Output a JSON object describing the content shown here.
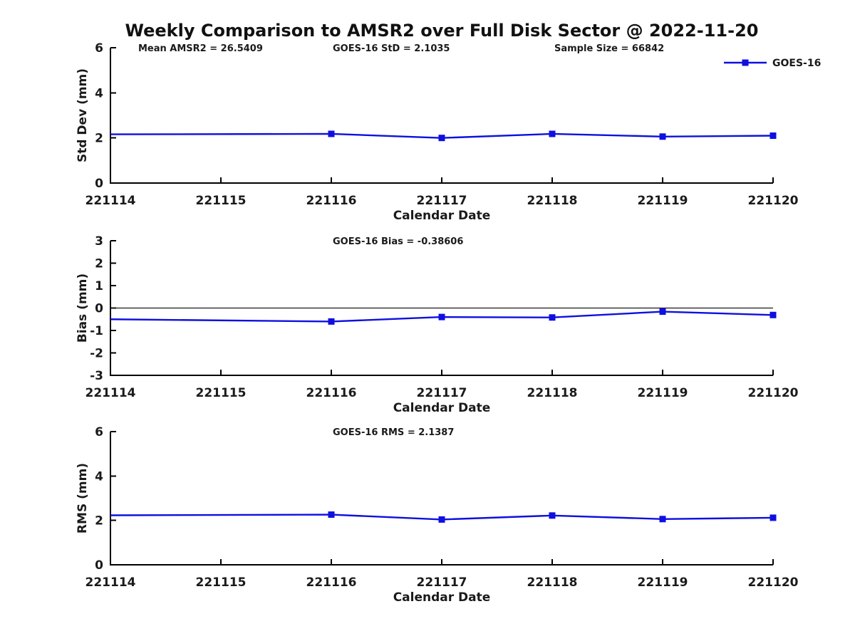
{
  "title": "Weekly Comparison to AMSR2 over Full Disk Sector @ 2022-11-20",
  "colors": {
    "line": "#0f0fe0",
    "axis": "#000000",
    "text": "#1a1a1a",
    "zero_line": "#1a1a1a"
  },
  "legend": {
    "label": "GOES-16",
    "position": "top-right",
    "marker": "square"
  },
  "chart_data": [
    {
      "type": "line",
      "name": "std-dev-panel",
      "ylabel": "Std Dev (mm)",
      "xlabel": "Calendar Date",
      "ylim": [
        0,
        6
      ],
      "yticks": [
        0,
        2,
        4,
        6
      ],
      "ytick_labels": [
        "0",
        "2",
        "4",
        "6"
      ],
      "x_tick_labels": [
        "221114",
        "221115",
        "221116",
        "221117",
        "221118",
        "221119",
        "221120"
      ],
      "grid": false,
      "zero_line": false,
      "annotations": [
        {
          "text": "Mean AMSR2 = 26.5409"
        },
        {
          "text": "GOES-16 StD = 2.1035"
        },
        {
          "text": "Sample Size = 66842"
        }
      ],
      "series": [
        {
          "name": "GOES-16",
          "x": [
            "221114",
            "221116",
            "221117",
            "221118",
            "221119",
            "221120"
          ],
          "y": [
            2.16,
            2.18,
            2.0,
            2.18,
            2.06,
            2.1
          ],
          "marker": "square",
          "clipped_marker_x": [
            "221114"
          ]
        }
      ]
    },
    {
      "type": "line",
      "name": "bias-panel",
      "ylabel": "Bias (mm)",
      "xlabel": "Calendar Date",
      "ylim": [
        -3,
        3
      ],
      "yticks": [
        -3,
        -2,
        -1,
        0,
        1,
        2,
        3
      ],
      "ytick_labels": [
        "-3",
        "-2",
        "-1",
        "0",
        "1",
        "2",
        "3"
      ],
      "x_tick_labels": [
        "221114",
        "221115",
        "221116",
        "221117",
        "221118",
        "221119",
        "221120"
      ],
      "grid": false,
      "zero_line": true,
      "annotations": [
        {
          "text": "GOES-16 Bias  = -0.38606"
        }
      ],
      "series": [
        {
          "name": "GOES-16",
          "x": [
            "221114",
            "221116",
            "221117",
            "221118",
            "221119",
            "221120"
          ],
          "y": [
            -0.5,
            -0.6,
            -0.4,
            -0.42,
            -0.16,
            -0.31
          ],
          "marker": "square",
          "clipped_marker_x": [
            "221114"
          ]
        }
      ]
    },
    {
      "type": "line",
      "name": "rms-panel",
      "ylabel": "RMS (mm)",
      "xlabel": "Calendar Date",
      "ylim": [
        0,
        6
      ],
      "yticks": [
        0,
        2,
        4,
        6
      ],
      "ytick_labels": [
        "0",
        "2",
        "4",
        "6"
      ],
      "x_tick_labels": [
        "221114",
        "221115",
        "221116",
        "221117",
        "221118",
        "221119",
        "221120"
      ],
      "grid": false,
      "zero_line": false,
      "annotations": [
        {
          "text": "GOES-16 RMS = 2.1387"
        }
      ],
      "series": [
        {
          "name": "GOES-16",
          "x": [
            "221114",
            "221116",
            "221117",
            "221118",
            "221119",
            "221120"
          ],
          "y": [
            2.23,
            2.26,
            2.04,
            2.22,
            2.06,
            2.12
          ],
          "marker": "square",
          "clipped_marker_x": [
            "221114"
          ]
        }
      ]
    }
  ]
}
